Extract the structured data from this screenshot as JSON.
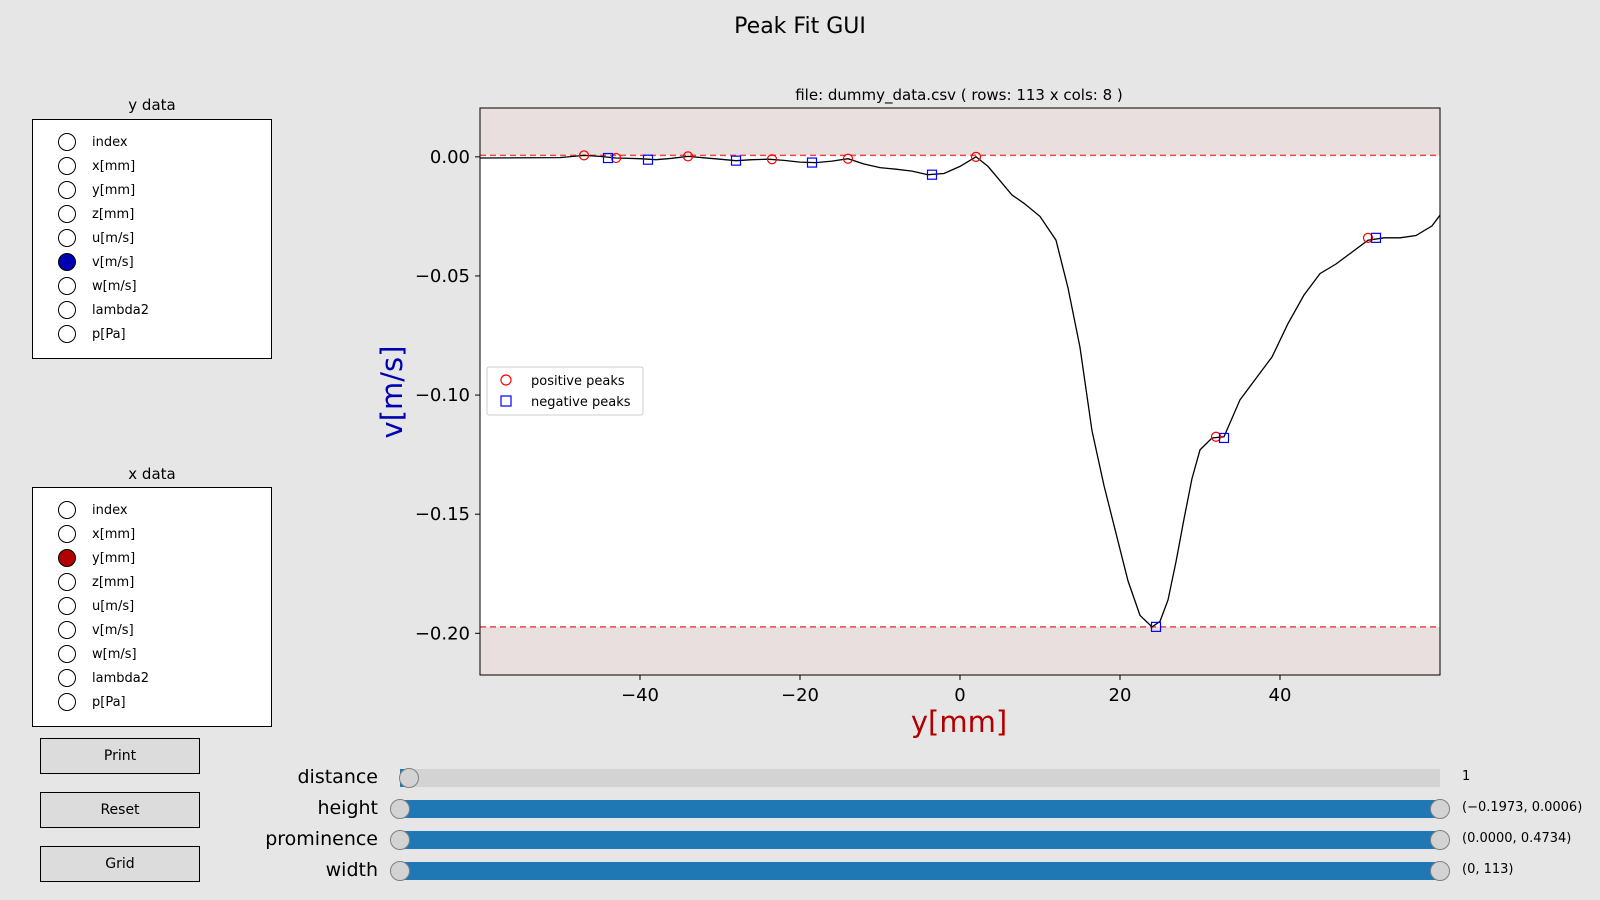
{
  "figure_title": "Peak Fit GUI",
  "y_data": {
    "title": "y data",
    "options": [
      "index",
      "x[mm]",
      "y[mm]",
      "z[mm]",
      "u[m/s]",
      "v[m/s]",
      "w[m/s]",
      "lambda2",
      "p[Pa]"
    ],
    "selected": "v[m/s]",
    "selected_color": "#0000b2"
  },
  "x_data": {
    "title": "x data",
    "options": [
      "index",
      "x[mm]",
      "y[mm]",
      "z[mm]",
      "u[m/s]",
      "v[m/s]",
      "w[m/s]",
      "lambda2",
      "p[Pa]"
    ],
    "selected": "y[mm]",
    "selected_color": "#b20000"
  },
  "buttons": {
    "print": "Print",
    "reset": "Reset",
    "grid": "Grid"
  },
  "sliders": [
    {
      "name": "distance",
      "label": "distance",
      "value_text": "1",
      "range": [
        0.0,
        0.0
      ],
      "type": "single"
    },
    {
      "name": "height",
      "label": "height",
      "value_text": "(−0.1973, 0.0006)",
      "range": [
        0.0,
        1.0
      ],
      "type": "range"
    },
    {
      "name": "prominence",
      "label": "prominence",
      "value_text": "(0.0000, 0.4734)",
      "range": [
        0.0,
        1.0
      ],
      "type": "range"
    },
    {
      "name": "width",
      "label": "width",
      "value_text": "(0, 113)",
      "range": [
        0.0,
        1.0
      ],
      "type": "range"
    }
  ],
  "chart_data": {
    "type": "line",
    "title": "file: dummy_data.csv ( rows: 113 x cols: 8 )",
    "xlabel": "y[mm]",
    "ylabel": "v[m/s]",
    "xlabel_color": "#b20000",
    "ylabel_color": "#0000b2",
    "xlim": [
      -60,
      60
    ],
    "ylim": [
      -0.2175,
      0.0205
    ],
    "xticks": [
      -40,
      -20,
      0,
      20,
      40
    ],
    "xtick_labels": [
      "−40",
      "−20",
      "0",
      "20",
      "40"
    ],
    "yticks": [
      0.0,
      -0.05,
      -0.1,
      -0.15,
      -0.2
    ],
    "ytick_labels": [
      "0.00",
      "−0.05",
      "−0.10",
      "−0.15",
      "−0.20"
    ],
    "height_band": [
      -0.1973,
      0.0006
    ],
    "band_color": "#eadfdf",
    "threshold_color": "#e8474a",
    "grid": false,
    "legend_position": "center-left",
    "series": [
      {
        "role": "signal",
        "color": "#000000",
        "x": [
          -60,
          -50,
          -47,
          -45,
          -43,
          -40,
          -38,
          -36,
          -34,
          -32,
          -30,
          -28,
          -26,
          -24,
          -22,
          -20,
          -18,
          -16,
          -14,
          -12,
          -10,
          -8,
          -6,
          -4,
          -2,
          0,
          2,
          3.5,
          5,
          6.5,
          8,
          10,
          12,
          13.5,
          15,
          16.5,
          18,
          19.5,
          21,
          22.5,
          24,
          25,
          26,
          27,
          28,
          29,
          30,
          31.5,
          33,
          35,
          37,
          39,
          41,
          43,
          45,
          47,
          49,
          51,
          53,
          55,
          57,
          59,
          60
        ],
        "y": [
          -0.0005,
          -0.0003,
          0.0006,
          0.0002,
          -0.0005,
          -0.0008,
          -0.0012,
          -0.0006,
          0.0002,
          -0.0004,
          -0.001,
          -0.0016,
          -0.0012,
          -0.001,
          -0.0015,
          -0.0022,
          -0.0024,
          -0.0018,
          -0.0008,
          -0.003,
          -0.0045,
          -0.0052,
          -0.006,
          -0.0075,
          -0.007,
          -0.004,
          0.0,
          -0.004,
          -0.01,
          -0.016,
          -0.0195,
          -0.025,
          -0.035,
          -0.055,
          -0.08,
          -0.115,
          -0.138,
          -0.158,
          -0.178,
          -0.1925,
          -0.1973,
          -0.195,
          -0.186,
          -0.17,
          -0.152,
          -0.135,
          -0.123,
          -0.118,
          -0.1175,
          -0.102,
          -0.093,
          -0.084,
          -0.07,
          -0.058,
          -0.049,
          -0.045,
          -0.04,
          -0.035,
          -0.034,
          -0.034,
          -0.033,
          -0.029,
          -0.0245
        ]
      },
      {
        "name": "positive peaks",
        "marker": "circle",
        "color": "#ff0000",
        "x": [
          -47,
          -43,
          -34,
          -23.5,
          -14,
          2,
          32,
          51
        ],
        "y": [
          0.0006,
          -0.0005,
          0.0002,
          -0.001,
          -0.0008,
          0.0,
          -0.1175,
          -0.034
        ]
      },
      {
        "name": "negative peaks",
        "marker": "square",
        "color": "#0000ff",
        "x": [
          -44,
          -39,
          -28,
          -18.5,
          -3.5,
          24.5,
          33,
          52
        ],
        "y": [
          -0.0005,
          -0.0012,
          -0.0016,
          -0.0024,
          -0.0075,
          -0.1973,
          -0.118,
          -0.034
        ]
      }
    ]
  }
}
